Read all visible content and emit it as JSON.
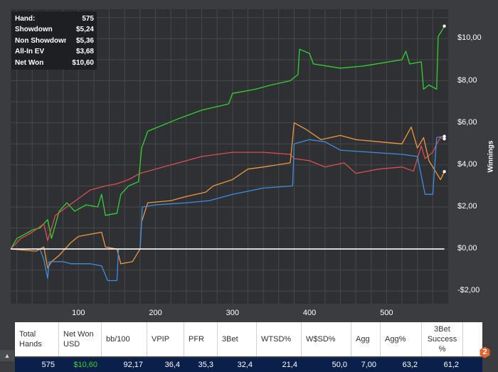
{
  "summary": [
    {
      "label": "Hand:",
      "value": "575"
    },
    {
      "label": "Showdown",
      "value": "$5,24"
    },
    {
      "label": "Non Showdown",
      "value": "$5,36"
    },
    {
      "label": "All-In EV",
      "value": "$3,68"
    },
    {
      "label": "Net Won",
      "value": "$10,60"
    }
  ],
  "chart_data": {
    "type": "line",
    "ylabel": "Winnings",
    "xlim": [
      12,
      580
    ],
    "ylim": [
      -2.6,
      11.4
    ],
    "x_ticks": [
      {
        "v": 100,
        "label": "100"
      },
      {
        "v": 200,
        "label": "200"
      },
      {
        "v": 300,
        "label": "300"
      },
      {
        "v": 400,
        "label": "400"
      },
      {
        "v": 500,
        "label": "500"
      }
    ],
    "y_ticks": [
      {
        "v": 10,
        "label": "$10,00"
      },
      {
        "v": 8,
        "label": "$8,00"
      },
      {
        "v": 6,
        "label": "$6,00"
      },
      {
        "v": 4,
        "label": "$4,00"
      },
      {
        "v": 2,
        "label": "$2,00"
      },
      {
        "v": 0,
        "label": "$0,00"
      },
      {
        "v": -2,
        "label": "-$2,00"
      }
    ],
    "series": [
      {
        "color": "#31d331",
        "points": [
          [
            12,
            0.0
          ],
          [
            20,
            0.5
          ],
          [
            30,
            0.7
          ],
          [
            40,
            0.9
          ],
          [
            50,
            1.0
          ],
          [
            60,
            1.4
          ],
          [
            65,
            0.5
          ],
          [
            75,
            1.8
          ],
          [
            85,
            2.2
          ],
          [
            95,
            1.8
          ],
          [
            110,
            2.1
          ],
          [
            125,
            2.0
          ],
          [
            130,
            2.6
          ],
          [
            135,
            1.6
          ],
          [
            150,
            1.7
          ],
          [
            155,
            2.6
          ],
          [
            165,
            3.0
          ],
          [
            178,
            3.2
          ],
          [
            182,
            4.8
          ],
          [
            190,
            5.6
          ],
          [
            230,
            6.2
          ],
          [
            260,
            6.6
          ],
          [
            295,
            6.9
          ],
          [
            300,
            7.4
          ],
          [
            330,
            7.6
          ],
          [
            350,
            7.8
          ],
          [
            375,
            8.0
          ],
          [
            385,
            8.3
          ],
          [
            387,
            9.5
          ],
          [
            400,
            9.3
          ],
          [
            405,
            8.8
          ],
          [
            440,
            8.6
          ],
          [
            470,
            8.7
          ],
          [
            520,
            9.0
          ],
          [
            525,
            9.4
          ],
          [
            530,
            8.8
          ],
          [
            545,
            8.9
          ],
          [
            548,
            7.6
          ],
          [
            555,
            7.8
          ],
          [
            565,
            7.6
          ],
          [
            567,
            10.1
          ],
          [
            572,
            10.4
          ],
          [
            575,
            10.6
          ]
        ]
      },
      {
        "color": "#d94f4f",
        "points": [
          [
            12,
            0.0
          ],
          [
            25,
            0.5
          ],
          [
            40,
            0.8
          ],
          [
            55,
            1.2
          ],
          [
            60,
            0.4
          ],
          [
            70,
            1.6
          ],
          [
            85,
            2.0
          ],
          [
            100,
            2.4
          ],
          [
            115,
            2.8
          ],
          [
            135,
            3.0
          ],
          [
            150,
            3.1
          ],
          [
            165,
            3.3
          ],
          [
            180,
            3.6
          ],
          [
            200,
            3.8
          ],
          [
            220,
            4.0
          ],
          [
            260,
            4.4
          ],
          [
            300,
            4.6
          ],
          [
            340,
            4.6
          ],
          [
            375,
            4.5
          ],
          [
            380,
            4.3
          ],
          [
            400,
            4.2
          ],
          [
            420,
            3.9
          ],
          [
            445,
            4.1
          ],
          [
            460,
            3.6
          ],
          [
            490,
            3.8
          ],
          [
            520,
            3.9
          ],
          [
            535,
            3.7
          ],
          [
            545,
            4.9
          ],
          [
            550,
            4.3
          ],
          [
            560,
            4.6
          ],
          [
            565,
            5.0
          ],
          [
            570,
            5.3
          ],
          [
            575,
            5.24
          ]
        ]
      },
      {
        "color": "#f0983d",
        "points": [
          [
            12,
            0.0
          ],
          [
            45,
            -0.1
          ],
          [
            55,
            0.1
          ],
          [
            60,
            -0.9
          ],
          [
            65,
            -0.6
          ],
          [
            75,
            -0.3
          ],
          [
            90,
            0.3
          ],
          [
            100,
            0.6
          ],
          [
            115,
            0.7
          ],
          [
            130,
            0.8
          ],
          [
            135,
            0.1
          ],
          [
            150,
            0.0
          ],
          [
            155,
            -0.7
          ],
          [
            170,
            -0.6
          ],
          [
            180,
            0.0
          ],
          [
            182,
            1.3
          ],
          [
            190,
            2.2
          ],
          [
            220,
            2.3
          ],
          [
            240,
            2.5
          ],
          [
            265,
            2.7
          ],
          [
            275,
            3.0
          ],
          [
            300,
            3.3
          ],
          [
            320,
            3.8
          ],
          [
            340,
            3.9
          ],
          [
            375,
            4.1
          ],
          [
            380,
            6.0
          ],
          [
            395,
            5.7
          ],
          [
            415,
            5.2
          ],
          [
            440,
            5.4
          ],
          [
            460,
            5.2
          ],
          [
            490,
            5.1
          ],
          [
            520,
            5.0
          ],
          [
            532,
            5.8
          ],
          [
            540,
            4.8
          ],
          [
            548,
            5.3
          ],
          [
            555,
            4.2
          ],
          [
            565,
            3.6
          ],
          [
            570,
            3.3
          ],
          [
            575,
            3.68
          ]
        ]
      },
      {
        "color": "#3d8ee0",
        "points": [
          [
            12,
            0.0
          ],
          [
            50,
            0.0
          ],
          [
            55,
            -0.5
          ],
          [
            60,
            -1.4
          ],
          [
            62,
            -0.6
          ],
          [
            80,
            -0.6
          ],
          [
            90,
            -0.7
          ],
          [
            115,
            -0.7
          ],
          [
            130,
            -0.8
          ],
          [
            138,
            -1.5
          ],
          [
            150,
            -1.5
          ],
          [
            152,
            0.0
          ],
          [
            180,
            0.0
          ],
          [
            183,
            2.0
          ],
          [
            200,
            2.1
          ],
          [
            240,
            2.2
          ],
          [
            270,
            2.3
          ],
          [
            300,
            2.6
          ],
          [
            340,
            2.9
          ],
          [
            378,
            3.0
          ],
          [
            380,
            5.0
          ],
          [
            400,
            5.2
          ],
          [
            420,
            5.1
          ],
          [
            440,
            4.7
          ],
          [
            480,
            4.6
          ],
          [
            520,
            4.5
          ],
          [
            540,
            4.4
          ],
          [
            550,
            2.6
          ],
          [
            560,
            2.6
          ],
          [
            565,
            5.3
          ],
          [
            575,
            5.36
          ]
        ]
      },
      {
        "color": "#ffffff",
        "points": [
          [
            12,
            0
          ],
          [
            575,
            0
          ]
        ]
      }
    ]
  },
  "stats": {
    "headers": [
      {
        "label": "Total Hands",
        "w": 62
      },
      {
        "label": "Net Won USD",
        "w": 60
      },
      {
        "label": "bb/100",
        "w": 64
      },
      {
        "label": "VPIP",
        "w": 52
      },
      {
        "label": "PFR",
        "w": 47
      },
      {
        "label": "3Bet",
        "w": 55
      },
      {
        "label": "WTSD%",
        "w": 63
      },
      {
        "label": "W$SD%",
        "w": 70
      },
      {
        "label": "Agg",
        "w": 41
      },
      {
        "label": "Agg%",
        "w": 58
      },
      {
        "label": "3Bet Success %",
        "w": 58
      }
    ],
    "values": [
      "575",
      "$10,60",
      "92,17",
      "36,4",
      "35,3",
      "32,4",
      "21,4",
      "50,0",
      "7,00",
      "63,2",
      "61,2"
    ]
  },
  "badge": "2"
}
